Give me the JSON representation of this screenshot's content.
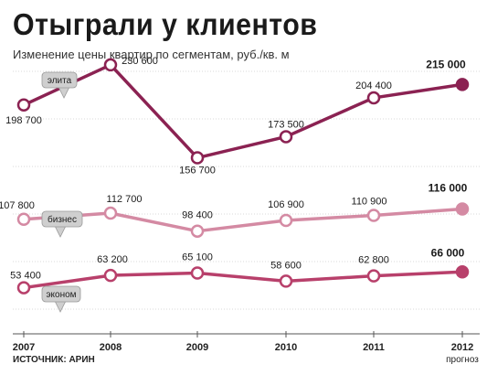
{
  "title": "Отыграли у клиентов",
  "subtitle": "Изменение цены квартир по сегментам, руб./кв. м",
  "source": "ИСТОЧНИК: АРИН",
  "forecast_label": "прогноз",
  "colors": {
    "elite": "#8b2252",
    "business": "#d48aa3",
    "economy": "#b8406b",
    "grid": "#d9d9d9",
    "callout_bg": "#cfcfcf"
  },
  "chart_data": {
    "type": "line",
    "categories": [
      "2007",
      "2008",
      "2009",
      "2010",
      "2011",
      "2012"
    ],
    "ylim": [
      0,
      240000
    ],
    "grid": "horizontal-dotted",
    "series": [
      {
        "name": "элита",
        "values": [
          198700,
          230600,
          156700,
          173500,
          204400,
          215000
        ],
        "labels": [
          "198 700",
          "230 600",
          "156 700",
          "173 500",
          "204 400",
          "215 000"
        ]
      },
      {
        "name": "бизнес",
        "values": [
          107800,
          112700,
          98400,
          106900,
          110900,
          116000
        ],
        "labels": [
          "107 800",
          "112 700",
          "98 400",
          "106 900",
          "110 900",
          "116 000"
        ]
      },
      {
        "name": "эконом",
        "values": [
          53400,
          63200,
          65100,
          58600,
          62800,
          66000
        ],
        "labels": [
          "53 400",
          "63 200",
          "65 100",
          "58 600",
          "62 800",
          "66 000"
        ]
      }
    ]
  }
}
